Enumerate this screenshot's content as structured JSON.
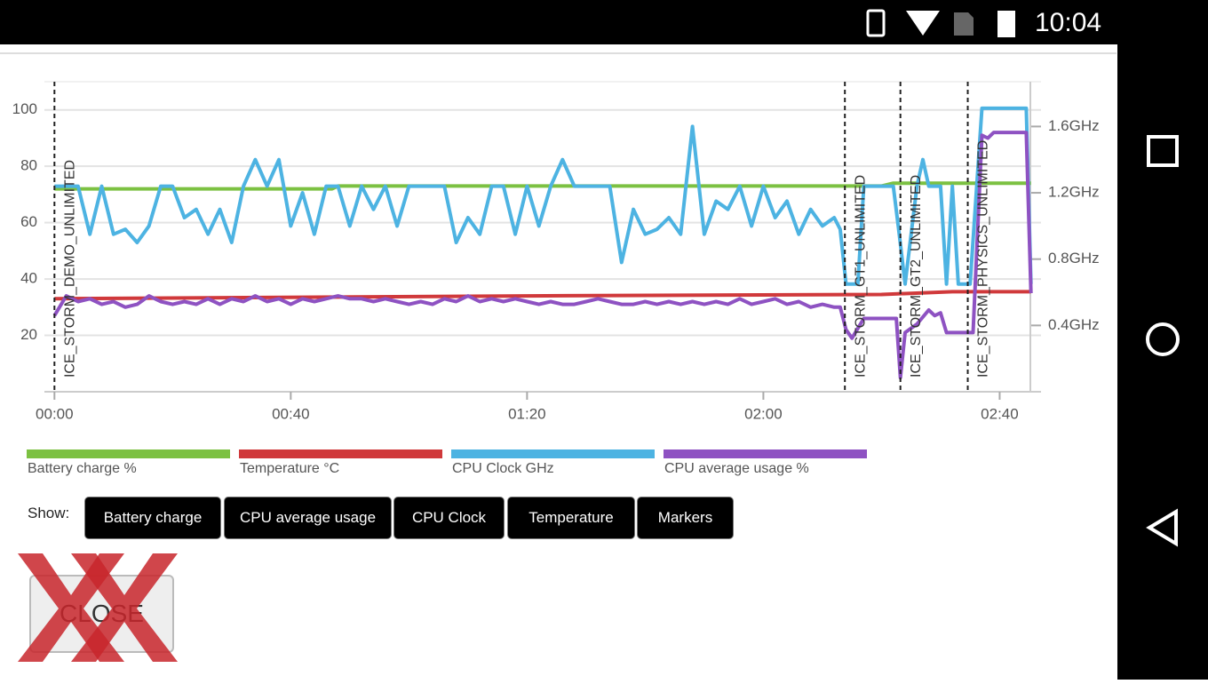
{
  "status_bar": {
    "time": "10:04"
  },
  "chart_data": {
    "type": "line",
    "xlim": [
      -1.7,
      167
    ],
    "xticks": [
      {
        "value": 0,
        "label": "00:00"
      },
      {
        "value": 40,
        "label": "00:40"
      },
      {
        "value": 80,
        "label": "01:20"
      },
      {
        "value": 120,
        "label": "02:00"
      },
      {
        "value": 160,
        "label": "02:40"
      }
    ],
    "ylim": [
      0,
      110
    ],
    "yticks": [
      20,
      40,
      60,
      80,
      100
    ],
    "y2lim": [
      0,
      1.87
    ],
    "y2ticks": [
      {
        "value": 0.4,
        "label": "0.4GHz"
      },
      {
        "value": 0.8,
        "label": "0.8GHz"
      },
      {
        "value": 1.2,
        "label": "1.2GHz"
      },
      {
        "value": 1.6,
        "label": "1.6GHz"
      }
    ],
    "grid": true,
    "markers": [
      {
        "x": 0,
        "label": "ICE_STORM_DEMO_UNLIMITED"
      },
      {
        "x": 133.8,
        "label": "ICE_STORM_GT1_UNLIMITED"
      },
      {
        "x": 143.2,
        "label": "ICE_STORM_GT2_UNLIMITED"
      },
      {
        "x": 154.6,
        "label": "ICE_STORM_PHYSICS_UNLIMITED"
      }
    ],
    "series": [
      {
        "name": "Battery charge %",
        "color": "#7cc142",
        "x": [
          0,
          47,
          48,
          100,
          140,
          142,
          165.3
        ],
        "values": [
          72,
          72,
          73,
          73,
          73,
          74,
          74
        ]
      },
      {
        "name": "Temperature °C",
        "color": "#d0393b",
        "x": [
          0,
          80,
          140,
          152,
          165.3
        ],
        "values": [
          33,
          34,
          34.5,
          35.5,
          35.5
        ]
      },
      {
        "name": "CPU Clock GHz",
        "color": "#4db3e2",
        "axis": "y2",
        "x": [
          0,
          2,
          4,
          6,
          8,
          10,
          12,
          14,
          16,
          18,
          20,
          22,
          24,
          26,
          28,
          30,
          32,
          34,
          36,
          38,
          40,
          42,
          44,
          46,
          48,
          50,
          52,
          54,
          56,
          58,
          60,
          62,
          64,
          66,
          68,
          70,
          72,
          74,
          76,
          78,
          80,
          82,
          84,
          86,
          88,
          90,
          92,
          94,
          96,
          98,
          100,
          102,
          104,
          106,
          108,
          110,
          112,
          114,
          116,
          118,
          120,
          122,
          124,
          126,
          128,
          130,
          132,
          133,
          134,
          136,
          137,
          140,
          142,
          143,
          144,
          146,
          147,
          148,
          150,
          151,
          152,
          153,
          155,
          157,
          161,
          164.5,
          165.3
        ],
        "values": [
          1.24,
          1.24,
          1.24,
          0.95,
          1.24,
          0.95,
          0.98,
          0.9,
          1.0,
          1.24,
          1.24,
          1.05,
          1.1,
          0.95,
          1.1,
          0.9,
          1.24,
          1.4,
          1.24,
          1.4,
          1.0,
          1.2,
          0.95,
          1.24,
          1.24,
          1.0,
          1.24,
          1.1,
          1.24,
          1.0,
          1.24,
          1.24,
          1.24,
          1.24,
          0.9,
          1.05,
          0.95,
          1.24,
          1.24,
          0.95,
          1.24,
          1.0,
          1.24,
          1.4,
          1.24,
          1.24,
          1.24,
          1.24,
          0.78,
          1.1,
          0.95,
          0.98,
          1.05,
          0.95,
          1.6,
          0.95,
          1.15,
          1.1,
          1.24,
          1.0,
          1.24,
          1.05,
          1.15,
          0.95,
          1.1,
          1.0,
          1.05,
          0.98,
          0.65,
          0.65,
          1.24,
          1.24,
          1.24,
          0.95,
          0.65,
          1.24,
          1.4,
          1.24,
          1.24,
          0.65,
          1.24,
          0.65,
          0.65,
          1.71,
          1.71,
          1.71,
          0.65
        ]
      },
      {
        "name": "CPU average usage %",
        "color": "#8e52c2",
        "x": [
          0,
          2,
          4,
          6,
          8,
          10,
          12,
          14,
          16,
          18,
          20,
          22,
          24,
          26,
          28,
          30,
          32,
          34,
          36,
          38,
          40,
          42,
          44,
          46,
          48,
          50,
          52,
          54,
          56,
          58,
          60,
          62,
          64,
          66,
          68,
          70,
          72,
          74,
          76,
          78,
          80,
          82,
          84,
          86,
          88,
          90,
          92,
          94,
          96,
          98,
          100,
          102,
          104,
          106,
          108,
          110,
          112,
          114,
          116,
          118,
          120,
          122,
          124,
          126,
          128,
          130,
          132,
          133,
          134,
          135,
          137,
          139,
          141,
          142.5,
          143.2,
          144,
          146,
          148,
          149,
          150,
          151,
          153,
          155.5,
          157,
          158,
          159,
          164.5,
          165.3
        ],
        "values": [
          27,
          34,
          32,
          33,
          31,
          32,
          30,
          31,
          34,
          32,
          31,
          32,
          31,
          33,
          31,
          33,
          32,
          34,
          32,
          33,
          31,
          33,
          32,
          33,
          34,
          33,
          33,
          32,
          33,
          32,
          31,
          32,
          31,
          33,
          32,
          34,
          32,
          33,
          32,
          33,
          32,
          31,
          32,
          31,
          31,
          32,
          33,
          32,
          31,
          31,
          32,
          31,
          32,
          31,
          32,
          31,
          32,
          31,
          33,
          31,
          32,
          33,
          31,
          32,
          30,
          31,
          30,
          30,
          22,
          19,
          26,
          26,
          26,
          26,
          5,
          21,
          24,
          29,
          27,
          28,
          21,
          21,
          21,
          91,
          90,
          92,
          92,
          35
        ]
      }
    ]
  },
  "controls": {
    "show_label": "Show:",
    "buttons": [
      "Battery charge",
      "CPU average usage",
      "CPU Clock",
      "Temperature",
      "Markers"
    ],
    "close": "CLOSE"
  }
}
